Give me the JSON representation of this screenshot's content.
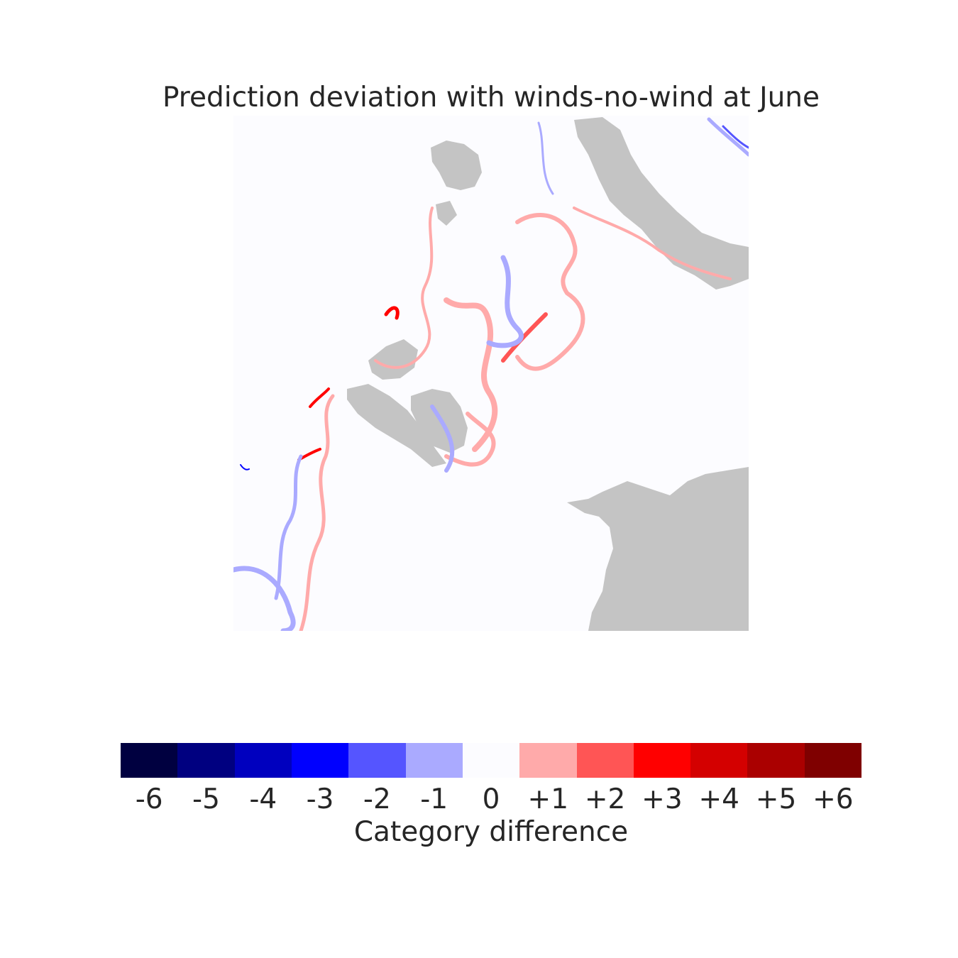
{
  "title": "Prediction deviation with winds-no-wind at June",
  "map": {
    "background_color": "#fcfcff",
    "land_color": "#c4c4c4"
  },
  "colorbar": {
    "label": "Category difference",
    "categories": [
      {
        "label": "-6",
        "color": "#000040"
      },
      {
        "label": "-5",
        "color": "#000080"
      },
      {
        "label": "-4",
        "color": "#0000bf"
      },
      {
        "label": "-3",
        "color": "#0000ff"
      },
      {
        "label": "-2",
        "color": "#5555ff"
      },
      {
        "label": "-1",
        "color": "#aaaaff"
      },
      {
        "label": "0",
        "color": "#fcfcff"
      },
      {
        "label": "+1",
        "color": "#ffaaaa"
      },
      {
        "label": "+2",
        "color": "#ff5555"
      },
      {
        "label": "+3",
        "color": "#ff0000"
      },
      {
        "label": "+4",
        "color": "#d40000"
      },
      {
        "label": "+5",
        "color": "#aa0000"
      },
      {
        "label": "+6",
        "color": "#7f0000"
      }
    ]
  }
}
